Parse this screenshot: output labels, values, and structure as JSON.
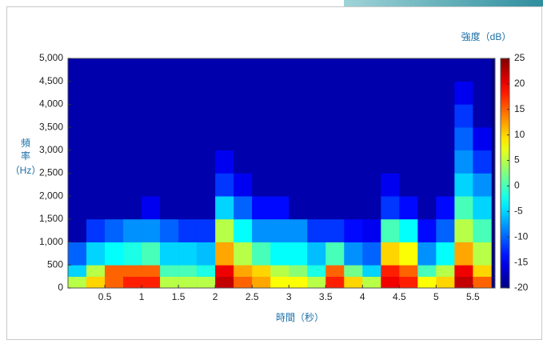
{
  "chart_data": {
    "type": "heatmap",
    "colormap": "jet",
    "x_label": "時間（秒）",
    "y_label": [
      "頻",
      "率",
      "（Hz）"
    ],
    "colorbar_label": "強度（dB）",
    "xlim": [
      0,
      5.8
    ],
    "ylim": [
      0,
      5000
    ],
    "clim": [
      -20,
      25
    ],
    "xticks": [
      0.5,
      1,
      1.5,
      2,
      2.5,
      3,
      3.5,
      4,
      4.5,
      5,
      5.5
    ],
    "yticks": [
      0,
      500,
      {
        "value": 1000,
        "label": "1,000"
      },
      {
        "value": 1500,
        "label": "1,500"
      },
      {
        "value": 2000,
        "label": "2,000"
      },
      {
        "value": 2500,
        "label": "2,500"
      },
      {
        "value": 3000,
        "label": "3,000"
      },
      {
        "value": 3500,
        "label": "3,500"
      },
      {
        "value": 4000,
        "label": "4,000"
      },
      {
        "value": 4500,
        "label": "4,500"
      },
      {
        "value": 5000,
        "label": "5,000"
      }
    ],
    "cticks": [
      25,
      20,
      15,
      10,
      5,
      0,
      -5,
      -10,
      -15,
      -20
    ],
    "xbins": [
      0,
      0.25,
      0.5,
      0.75,
      1,
      1.25,
      1.5,
      1.75,
      2,
      2.25,
      2.5,
      2.75,
      3,
      3.25,
      3.5,
      3.75,
      4,
      4.25,
      4.5,
      4.75,
      5,
      5.25,
      5.5,
      5.75
    ],
    "ybins": [
      0,
      250,
      500,
      1000,
      1500,
      2000,
      2500,
      3000,
      3500,
      4000,
      4500,
      5000
    ],
    "values": [
      [
        5,
        -5,
        -10,
        -18,
        -18,
        -18,
        -18,
        -18,
        -18,
        -18,
        -18
      ],
      [
        10,
        5,
        -5,
        -12,
        -18,
        -18,
        -18,
        -18,
        -18,
        -18,
        -18
      ],
      [
        15,
        15,
        -3,
        -10,
        -18,
        -18,
        -18,
        -18,
        -18,
        -18,
        -18
      ],
      [
        18,
        15,
        -2,
        -8,
        -18,
        -18,
        -18,
        -18,
        -18,
        -18,
        -18
      ],
      [
        18,
        15,
        0,
        -8,
        -15,
        -18,
        -18,
        -18,
        -18,
        -18,
        -18
      ],
      [
        5,
        0,
        -5,
        -10,
        -18,
        -18,
        -18,
        -18,
        -18,
        -18,
        -18
      ],
      [
        5,
        0,
        -5,
        -12,
        -18,
        -18,
        -18,
        -18,
        -18,
        -18,
        -18
      ],
      [
        5,
        -2,
        -6,
        -12,
        -18,
        -18,
        -18,
        -18,
        -18,
        -18,
        -18
      ],
      [
        22,
        20,
        12,
        5,
        -5,
        -12,
        -15,
        -18,
        -18,
        -18,
        -18
      ],
      [
        15,
        12,
        5,
        -3,
        -10,
        -15,
        -18,
        -18,
        -18,
        -18,
        -18
      ],
      [
        12,
        10,
        0,
        -8,
        -14,
        -18,
        -18,
        -18,
        -18,
        -18,
        -18
      ],
      [
        8,
        5,
        -3,
        -8,
        -14,
        -18,
        -18,
        -18,
        -18,
        -18,
        -18
      ],
      [
        8,
        3,
        -3,
        -8,
        -18,
        -18,
        -18,
        -18,
        -18,
        -18,
        -18
      ],
      [
        5,
        -2,
        -6,
        -12,
        -18,
        -18,
        -18,
        -18,
        -18,
        -18,
        -18
      ],
      [
        18,
        15,
        0,
        -12,
        -18,
        -18,
        -18,
        -18,
        -18,
        -18,
        -18
      ],
      [
        10,
        2,
        -8,
        -14,
        -18,
        -18,
        -18,
        -18,
        -18,
        -18,
        -18
      ],
      [
        5,
        -5,
        -10,
        -15,
        -18,
        -18,
        -18,
        -18,
        -18,
        -18,
        -18
      ],
      [
        20,
        18,
        10,
        0,
        -12,
        -15,
        -18,
        -18,
        -18,
        -18,
        -18
      ],
      [
        18,
        15,
        8,
        -3,
        -14,
        -18,
        -18,
        -18,
        -18,
        -18,
        -18
      ],
      [
        8,
        0,
        -8,
        -14,
        -18,
        -18,
        -18,
        -18,
        -18,
        -18,
        -18
      ],
      [
        10,
        5,
        -3,
        -10,
        -14,
        -18,
        -18,
        -18,
        -18,
        -18,
        -18
      ],
      [
        22,
        20,
        12,
        5,
        0,
        -5,
        -8,
        -10,
        -12,
        -15,
        -18
      ],
      [
        15,
        10,
        5,
        0,
        -5,
        -8,
        -12,
        -15,
        -18,
        -18,
        -18
      ]
    ]
  }
}
